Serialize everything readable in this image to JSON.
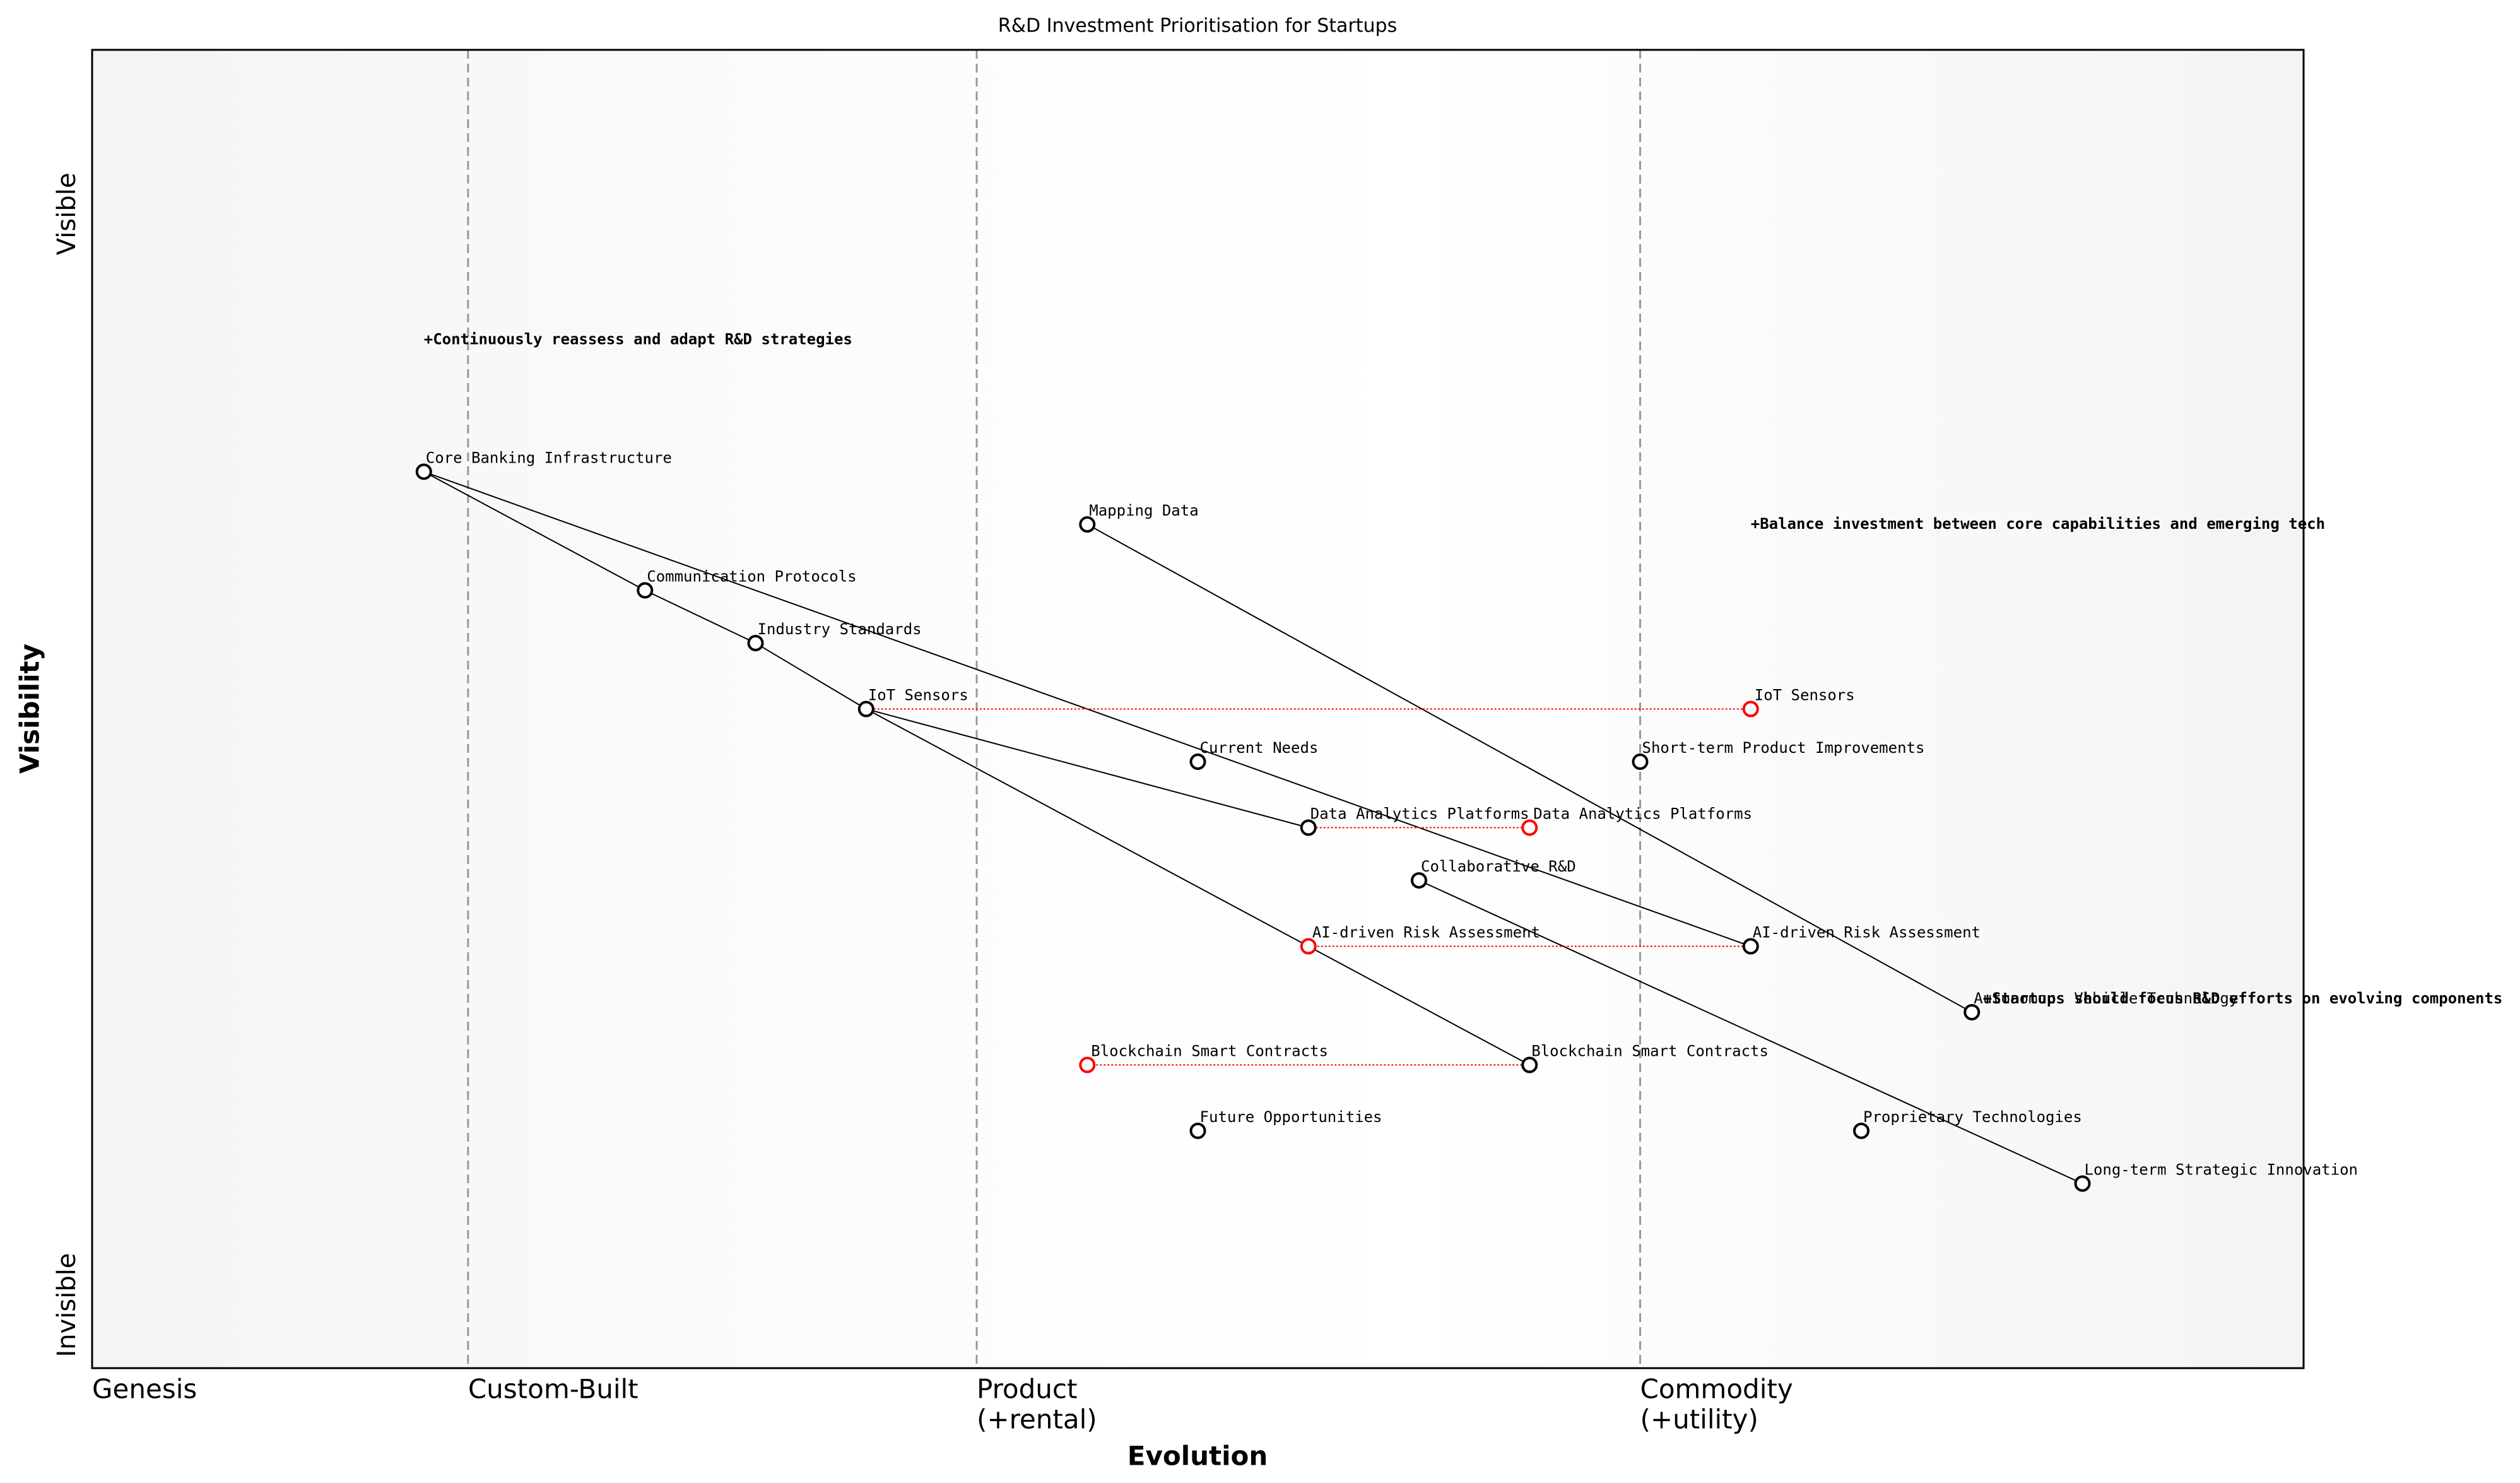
{
  "chart_data": {
    "type": "wardley",
    "title": "R&D Investment Prioritisation for Startups",
    "x_label": "Evolution",
    "y_label": "Visibility",
    "y_top_label": "Visible",
    "y_bottom_label": "Invisible",
    "xlim": [
      0,
      1
    ],
    "ylim": [
      0,
      1
    ],
    "stages": [
      {
        "value": 0,
        "label": [
          "Genesis"
        ]
      },
      {
        "value": 0.17,
        "label": [
          "Custom-Built"
        ]
      },
      {
        "value": 0.4,
        "label": [
          "Product",
          "(+rental)"
        ]
      },
      {
        "value": 0.7,
        "label": [
          "Commodity",
          "(+utility)"
        ]
      }
    ],
    "components": [
      {
        "name": "Core Banking Infrastructure",
        "x": 0.15,
        "y": 0.68
      },
      {
        "name": "Communication Protocols",
        "x": 0.25,
        "y": 0.59
      },
      {
        "name": "Industry Standards",
        "x": 0.3,
        "y": 0.55
      },
      {
        "name": "IoT Sensors",
        "x": 0.35,
        "y": 0.5
      },
      {
        "name": "Mapping Data",
        "x": 0.45,
        "y": 0.64
      },
      {
        "name": "Current Needs",
        "x": 0.5,
        "y": 0.46
      },
      {
        "name": "Short-term Product Improvements",
        "x": 0.7,
        "y": 0.46
      },
      {
        "name": "Data Analytics Platforms",
        "x": 0.55,
        "y": 0.41
      },
      {
        "name": "Collaborative R&D",
        "x": 0.6,
        "y": 0.37
      },
      {
        "name": "AI-driven Risk Assessment",
        "x": 0.75,
        "y": 0.32
      },
      {
        "name": "Autonomous Vehicle Technology",
        "x": 0.85,
        "y": 0.27
      },
      {
        "name": "Blockchain Smart Contracts",
        "x": 0.65,
        "y": 0.23
      },
      {
        "name": "Future Opportunities",
        "x": 0.5,
        "y": 0.18
      },
      {
        "name": "Proprietary Technologies",
        "x": 0.8,
        "y": 0.18
      },
      {
        "name": "Long-term Strategic Innovation",
        "x": 0.9,
        "y": 0.14
      }
    ],
    "links": [
      [
        "Core Banking Infrastructure",
        "Communication Protocols"
      ],
      [
        "Core Banking Infrastructure",
        "AI-driven Risk Assessment"
      ],
      [
        "Communication Protocols",
        "Industry Standards"
      ],
      [
        "Industry Standards",
        "IoT Sensors"
      ],
      [
        "IoT Sensors",
        "Data Analytics Platforms"
      ],
      [
        "IoT Sensors",
        "Blockchain Smart Contracts"
      ],
      [
        "Mapping Data",
        "Autonomous Vehicle Technology"
      ],
      [
        "Collaborative R&D",
        "Long-term Strategic Innovation"
      ]
    ],
    "evolve": [
      {
        "name": "IoT Sensors",
        "to": 0.75
      },
      {
        "name": "Data Analytics Platforms",
        "to": 0.65
      },
      {
        "name": "AI-driven Risk Assessment",
        "to": 0.55
      },
      {
        "name": "Blockchain Smart Contracts",
        "to": 0.45
      }
    ],
    "evolve_color": "#ff0000",
    "notes": [
      {
        "text": "+Continuously reassess and adapt R&D strategies",
        "x": 0.15,
        "y": 0.78
      },
      {
        "text": "+Balance investment between core capabilities and emerging tech",
        "x": 0.75,
        "y": 0.64
      },
      {
        "text": "+Startups should focus R&D efforts on evolving components",
        "x": 0.855,
        "y": 0.28
      }
    ]
  }
}
